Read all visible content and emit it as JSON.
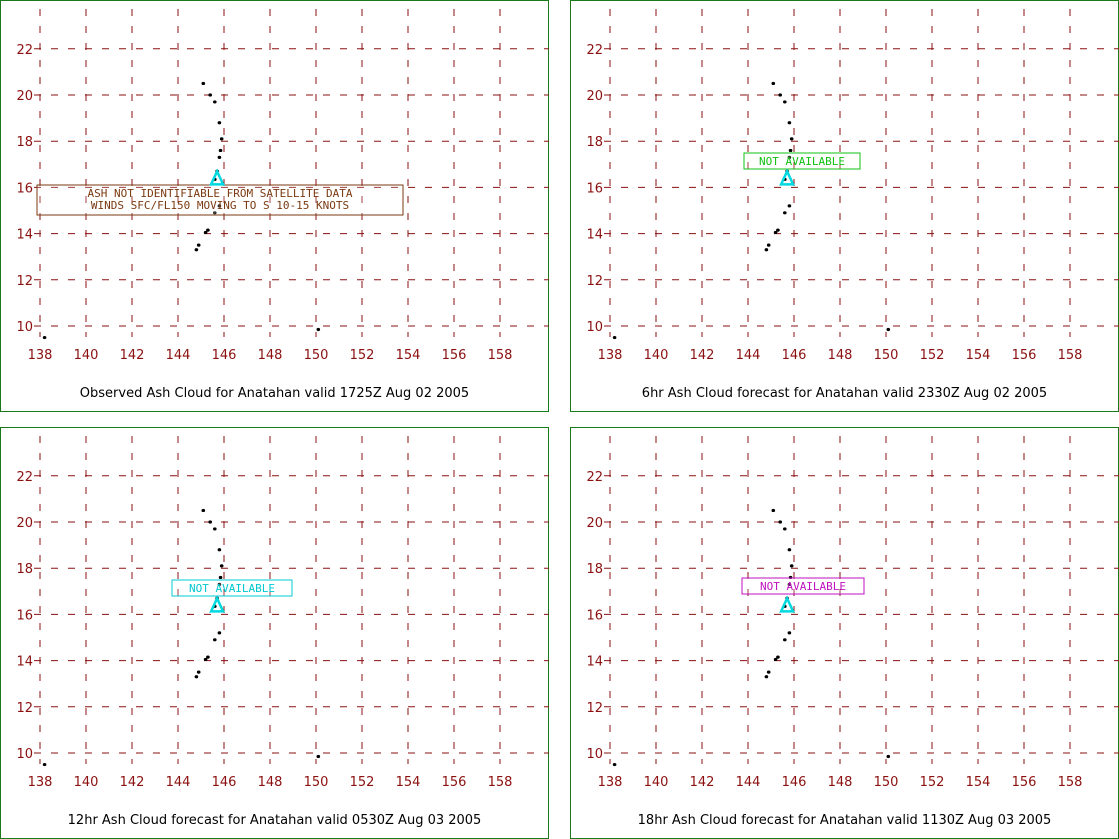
{
  "x_ticks": [
    "138",
    "140",
    "142",
    "144",
    "146",
    "148",
    "150",
    "152",
    "154",
    "156",
    "158"
  ],
  "y_ticks": [
    "10",
    "12",
    "14",
    "16",
    "18",
    "20",
    "22"
  ],
  "colors": {
    "grid": "#8b1010",
    "frame": "#1a7a1a",
    "volcano": "#00d8e0"
  },
  "volcano": {
    "lon": 145.7,
    "lat": 16.35
  },
  "islands": [
    {
      "lon": 145.1,
      "lat": 20.5
    },
    {
      "lon": 145.4,
      "lat": 20.0
    },
    {
      "lon": 145.6,
      "lat": 19.7
    },
    {
      "lon": 145.8,
      "lat": 18.8
    },
    {
      "lon": 145.9,
      "lat": 18.1
    },
    {
      "lon": 145.85,
      "lat": 17.6
    },
    {
      "lon": 145.8,
      "lat": 17.3
    },
    {
      "lon": 145.7,
      "lat": 16.7
    },
    {
      "lon": 145.6,
      "lat": 16.35
    },
    {
      "lon": 145.8,
      "lat": 15.2
    },
    {
      "lon": 145.6,
      "lat": 14.9
    },
    {
      "lon": 145.3,
      "lat": 14.15
    },
    {
      "lon": 145.2,
      "lat": 14.05
    },
    {
      "lon": 144.9,
      "lat": 13.5
    },
    {
      "lon": 144.8,
      "lat": 13.3
    },
    {
      "lon": 138.2,
      "lat": 9.5
    },
    {
      "lon": 150.1,
      "lat": 9.85
    }
  ],
  "panels": [
    {
      "caption": "Observed Ash Cloud for Anatahan valid 1725Z Aug 02 2005",
      "note_lines": [
        "ASH NOT IDENTIFIABLE FROM SATELLITE DATA",
        "WINDS SFC/FL150 MOVING TO S 10-15 KNOTS"
      ],
      "note_color": "#7a3a10"
    },
    {
      "caption": "6hr Ash Cloud forecast for Anatahan valid 2330Z Aug 02 2005",
      "note_lines": [
        "NOT AVAILABLE"
      ],
      "note_color": "#10c010"
    },
    {
      "caption": "12hr Ash Cloud forecast for Anatahan valid 0530Z Aug 03 2005",
      "note_lines": [
        "NOT AVAILABLE"
      ],
      "note_color": "#00c8d0"
    },
    {
      "caption": "18hr Ash Cloud forecast for Anatahan valid 1130Z Aug 03 2005",
      "note_lines": [
        "NOT AVAILABLE"
      ],
      "note_color": "#c010c0"
    }
  ]
}
